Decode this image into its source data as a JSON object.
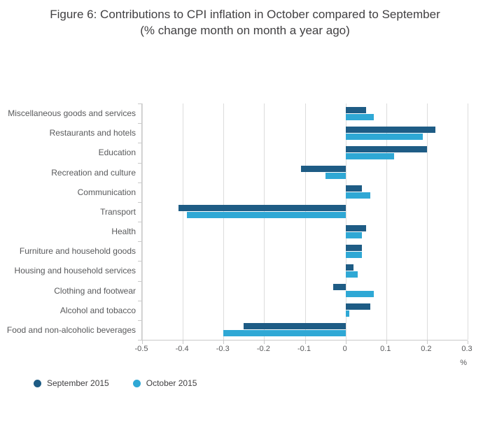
{
  "title": {
    "line1": "Figure 6: Contributions to CPI inflation in October compared to September",
    "line2": "(% change month on month a year ago)"
  },
  "chart_data": {
    "type": "bar",
    "orientation": "horizontal",
    "title": "Figure 6: Contributions to CPI inflation in October compared to September (% change month on month a year ago)",
    "xlabel": "%",
    "xlim": [
      -0.5,
      0.3
    ],
    "xticks": [
      -0.5,
      -0.4,
      -0.3,
      -0.2,
      -0.1,
      0,
      0.1,
      0.2,
      0.3
    ],
    "xtick_labels": [
      "-0.5",
      "-0.4",
      "-0.3",
      "-0.2",
      "-0.1",
      "0",
      "0.1",
      "0.2",
      "0.3"
    ],
    "grid": true,
    "legend_position": "bottom-left",
    "categories": [
      "Miscellaneous goods and services",
      "Restaurants and hotels",
      "Education",
      "Recreation and culture",
      "Communication",
      "Transport",
      "Health",
      "Furniture and household goods",
      "Housing and household services",
      "Clothing and footwear",
      "Alcohol and tobacco",
      "Food and non-alcoholic beverages"
    ],
    "series": [
      {
        "name": "September 2015",
        "color": "#1e5c85",
        "values": [
          0.05,
          0.22,
          0.2,
          -0.11,
          0.04,
          -0.41,
          0.05,
          0.04,
          0.02,
          -0.03,
          0.06,
          -0.25
        ]
      },
      {
        "name": "October 2015",
        "color": "#2fa8d5",
        "values": [
          0.07,
          0.19,
          0.12,
          -0.05,
          0.06,
          -0.39,
          0.04,
          0.04,
          0.03,
          0.07,
          0.01,
          -0.3
        ]
      }
    ]
  }
}
